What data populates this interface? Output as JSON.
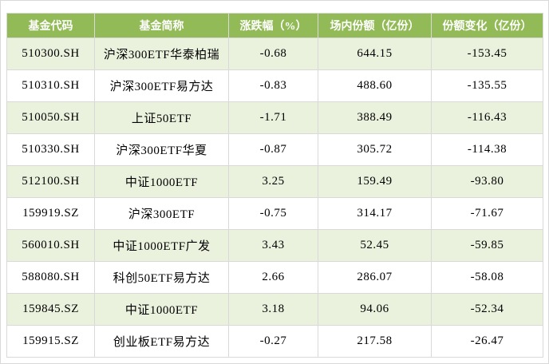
{
  "colors": {
    "header_bg": "#92BB57",
    "header_text": "#FFFFFF",
    "row_stripe_bg": "#EAF2DE",
    "row_bg": "#FFFFFF",
    "grid_border": "#D9D9D9",
    "body_text": "#000000"
  },
  "chart_data": {
    "type": "table",
    "columns": [
      "基金代码",
      "基金简称",
      "涨跌幅（%）",
      "场内份额（亿份）",
      "份额变化（亿份）"
    ],
    "rows": [
      [
        "510300.SH",
        "沪深300ETF华泰柏瑞",
        "-0.68",
        "644.15",
        "-153.45"
      ],
      [
        "510310.SH",
        "沪深300ETF易方达",
        "-0.83",
        "488.60",
        "-135.55"
      ],
      [
        "510050.SH",
        "上证50ETF",
        "-1.71",
        "388.49",
        "-116.43"
      ],
      [
        "510330.SH",
        "沪深300ETF华夏",
        "-0.87",
        "305.72",
        "-114.38"
      ],
      [
        "512100.SH",
        "中证1000ETF",
        "3.25",
        "159.49",
        "-93.80"
      ],
      [
        "159919.SZ",
        "沪深300ETF",
        "-0.75",
        "314.17",
        "-71.67"
      ],
      [
        "560010.SH",
        "中证1000ETF广发",
        "3.43",
        "52.45",
        "-59.85"
      ],
      [
        "588080.SH",
        "科创50ETF易方达",
        "2.66",
        "286.07",
        "-58.08"
      ],
      [
        "159845.SZ",
        "中证1000ETF",
        "3.18",
        "94.06",
        "-52.34"
      ],
      [
        "159915.SZ",
        "创业板ETF易方达",
        "-0.27",
        "217.58",
        "-26.47"
      ]
    ],
    "layout": {
      "grid": true,
      "header_style": "solid-green-band",
      "row_striping": "alternating-light-green"
    }
  }
}
